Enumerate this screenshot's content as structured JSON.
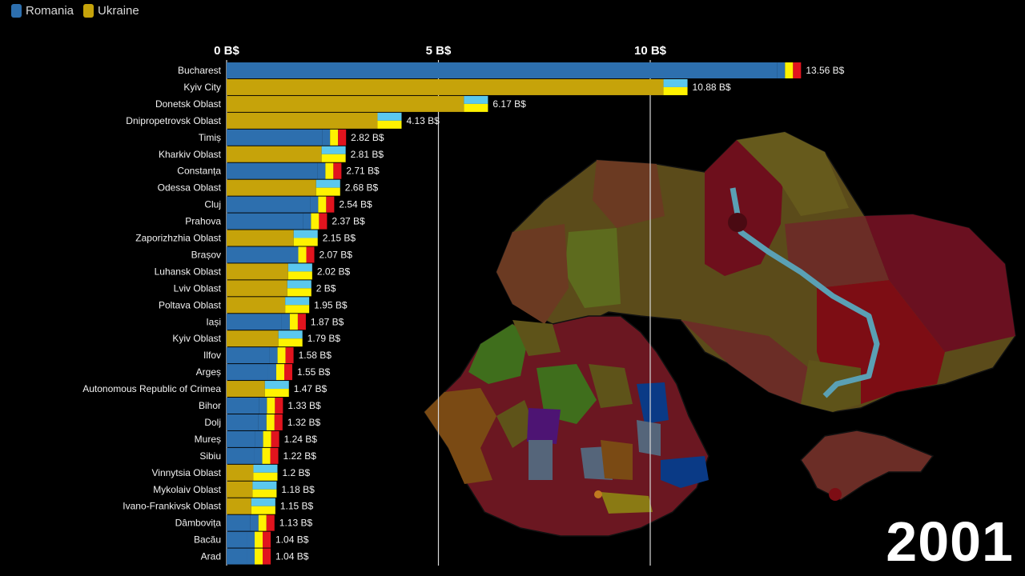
{
  "legend": [
    {
      "label": "Romania",
      "color": "#2d6fae"
    },
    {
      "label": "Ukraine",
      "color": "#c6a30a"
    }
  ],
  "year": "2001",
  "chart_data": {
    "type": "bar",
    "orientation": "horizontal",
    "unit": "B$",
    "xlim": [
      0,
      13.56
    ],
    "xticks": [
      {
        "value": 0,
        "label": "0 B$"
      },
      {
        "value": 5,
        "label": "5 B$"
      },
      {
        "value": 10,
        "label": "10 B$"
      }
    ],
    "grid": true,
    "legend_position": "top-left",
    "bars": [
      {
        "category": "Bucharest",
        "value": 13.56,
        "label": "13.56 B$",
        "country": "Romania"
      },
      {
        "category": "Kyiv City",
        "value": 10.88,
        "label": "10.88 B$",
        "country": "Ukraine"
      },
      {
        "category": "Donetsk Oblast",
        "value": 6.17,
        "label": "6.17 B$",
        "country": "Ukraine"
      },
      {
        "category": "Dnipropetrovsk Oblast",
        "value": 4.13,
        "label": "4.13 B$",
        "country": "Ukraine"
      },
      {
        "category": "Timiș",
        "value": 2.82,
        "label": "2.82 B$",
        "country": "Romania"
      },
      {
        "category": "Kharkiv Oblast",
        "value": 2.81,
        "label": "2.81 B$",
        "country": "Ukraine"
      },
      {
        "category": "Constanța",
        "value": 2.71,
        "label": "2.71 B$",
        "country": "Romania"
      },
      {
        "category": "Odessa Oblast",
        "value": 2.68,
        "label": "2.68 B$",
        "country": "Ukraine"
      },
      {
        "category": "Cluj",
        "value": 2.54,
        "label": "2.54 B$",
        "country": "Romania"
      },
      {
        "category": "Prahova",
        "value": 2.37,
        "label": "2.37 B$",
        "country": "Romania"
      },
      {
        "category": "Zaporizhzhia Oblast",
        "value": 2.15,
        "label": "2.15 B$",
        "country": "Ukraine"
      },
      {
        "category": "Brașov",
        "value": 2.07,
        "label": "2.07 B$",
        "country": "Romania"
      },
      {
        "category": "Luhansk Oblast",
        "value": 2.02,
        "label": "2.02 B$",
        "country": "Ukraine"
      },
      {
        "category": "Lviv Oblast",
        "value": 2.0,
        "label": "2 B$",
        "country": "Ukraine"
      },
      {
        "category": "Poltava Oblast",
        "value": 1.95,
        "label": "1.95 B$",
        "country": "Ukraine"
      },
      {
        "category": "Iași",
        "value": 1.87,
        "label": "1.87 B$",
        "country": "Romania"
      },
      {
        "category": "Kyiv Oblast",
        "value": 1.79,
        "label": "1.79 B$",
        "country": "Ukraine"
      },
      {
        "category": "Ilfov",
        "value": 1.58,
        "label": "1.58 B$",
        "country": "Romania"
      },
      {
        "category": "Argeș",
        "value": 1.55,
        "label": "1.55 B$",
        "country": "Romania"
      },
      {
        "category": "Autonomous Republic of Crimea",
        "value": 1.47,
        "label": "1.47 B$",
        "country": "Ukraine"
      },
      {
        "category": "Bihor",
        "value": 1.33,
        "label": "1.33 B$",
        "country": "Romania"
      },
      {
        "category": "Dolj",
        "value": 1.32,
        "label": "1.32 B$",
        "country": "Romania"
      },
      {
        "category": "Mureș",
        "value": 1.24,
        "label": "1.24 B$",
        "country": "Romania"
      },
      {
        "category": "Sibiu",
        "value": 1.22,
        "label": "1.22 B$",
        "country": "Romania"
      },
      {
        "category": "Vinnytsia Oblast",
        "value": 1.2,
        "label": "1.2 B$",
        "country": "Ukraine"
      },
      {
        "category": "Mykolaiv Oblast",
        "value": 1.18,
        "label": "1.18 B$",
        "country": "Ukraine"
      },
      {
        "category": "Ivano-Frankivsk Oblast",
        "value": 1.15,
        "label": "1.15 B$",
        "country": "Ukraine"
      },
      {
        "category": "Dâmbovița",
        "value": 1.13,
        "label": "1.13 B$",
        "country": "Romania"
      },
      {
        "category": "Bacău",
        "value": 1.04,
        "label": "1.04 B$",
        "country": "Romania"
      },
      {
        "category": "Arad",
        "value": 1.04,
        "label": "1.04 B$",
        "country": "Romania"
      }
    ]
  },
  "map_colors": {
    "deep_red": "#6e0f1c",
    "brown": "#6b3a22",
    "olive": "#5e5319",
    "green": "#3f6e1c",
    "blue": "#0a3a86",
    "steel": "#55657a",
    "purple": "#4d1473",
    "river": "#5aa0b4"
  }
}
